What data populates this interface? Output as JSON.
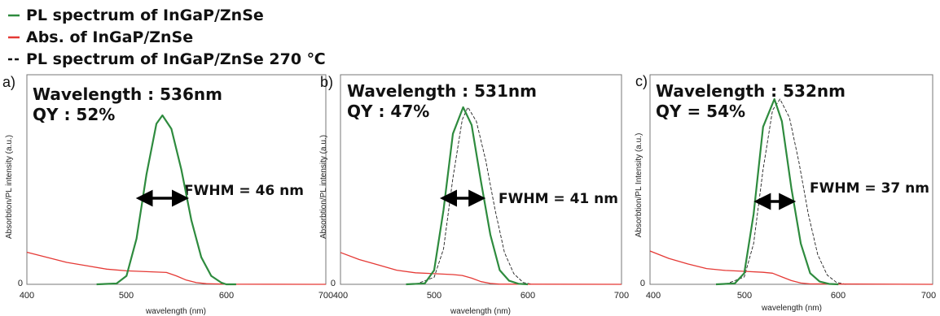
{
  "legend": [
    {
      "label": "PL spectrum of InGaP/ZnSe",
      "color": "#2e8b3e",
      "style": "solid"
    },
    {
      "label": "Abs. of InGaP/ZnSe",
      "color": "#e53935",
      "style": "solid"
    },
    {
      "label": "PL spectrum of InGaP/ZnSe 270 ℃",
      "color": "#111111",
      "style": "dashed"
    }
  ],
  "colors": {
    "pl": "#2e8b3e",
    "abs": "#e53935",
    "pl270": "#222222",
    "arrow": "#000000"
  },
  "chart_data": [
    {
      "type": "line",
      "panel_label": "a)",
      "annotation_wavelength": "Wavelength : 536nm",
      "annotation_qy": "QY : 52%",
      "fwhm_label": "FWHM = 46 nm",
      "xlabel": "wavelength (nm)",
      "ylabel": "Absorbtion/PL intensity (a.u.)",
      "xlim": [
        400,
        700
      ],
      "ylim": [
        0,
        1.1
      ],
      "x_ticks": [
        "400",
        "500",
        "600",
        "700"
      ],
      "y_ticks": [
        "0"
      ],
      "fwhm_arrow": [
        513,
        559
      ],
      "series": [
        {
          "key": "pl",
          "x": [
            470,
            490,
            500,
            510,
            520,
            530,
            536,
            545,
            555,
            565,
            575,
            585,
            595,
            600,
            610
          ],
          "y": [
            0,
            0.005,
            0.05,
            0.27,
            0.65,
            0.95,
            1.0,
            0.92,
            0.68,
            0.38,
            0.16,
            0.05,
            0.01,
            0.0,
            0
          ]
        },
        {
          "key": "abs",
          "x": [
            400,
            420,
            440,
            460,
            480,
            500,
            520,
            540,
            550,
            560,
            570,
            580,
            600,
            700
          ],
          "y": [
            0.19,
            0.16,
            0.13,
            0.11,
            0.09,
            0.08,
            0.075,
            0.07,
            0.05,
            0.025,
            0.01,
            0.004,
            0.001,
            0
          ]
        }
      ]
    },
    {
      "type": "line",
      "panel_label": "b)",
      "annotation_wavelength": "Wavelength : 531nm",
      "annotation_qy": "QY : 47%",
      "fwhm_label": "FWHM = 41 nm",
      "xlabel": "wavelength (nm)",
      "ylabel": "Absorbtion/PL intensity (a.u.)",
      "xlim": [
        400,
        700
      ],
      "ylim": [
        0,
        1.1
      ],
      "x_ticks": [
        "400",
        "500",
        "600",
        "700"
      ],
      "y_ticks": [
        "0"
      ],
      "fwhm_arrow": [
        510,
        551
      ],
      "series": [
        {
          "key": "pl",
          "x": [
            470,
            490,
            500,
            510,
            520,
            531,
            540,
            550,
            560,
            570,
            580,
            590,
            600
          ],
          "y": [
            0,
            0.005,
            0.08,
            0.42,
            0.85,
            1.0,
            0.9,
            0.58,
            0.28,
            0.08,
            0.02,
            0.003,
            0
          ]
        },
        {
          "key": "pl270",
          "x": [
            480,
            500,
            510,
            520,
            530,
            536,
            545,
            555,
            565,
            575,
            585,
            595,
            605
          ],
          "y": [
            0,
            0.04,
            0.2,
            0.6,
            0.93,
            1.0,
            0.92,
            0.7,
            0.42,
            0.18,
            0.06,
            0.01,
            0
          ]
        },
        {
          "key": "abs",
          "x": [
            400,
            420,
            440,
            460,
            480,
            500,
            520,
            530,
            540,
            550,
            560,
            570,
            700
          ],
          "y": [
            0.18,
            0.14,
            0.11,
            0.08,
            0.065,
            0.06,
            0.055,
            0.05,
            0.035,
            0.015,
            0.005,
            0.001,
            0
          ]
        }
      ]
    },
    {
      "type": "line",
      "panel_label": "c)",
      "annotation_wavelength": "Wavelength : 532nm",
      "annotation_qy": "QY = 54%",
      "fwhm_label": "FWHM = 37 nm",
      "xlabel": "wavelength (nm)",
      "ylabel": "Absorbtion/PL Intensity (a.u.)",
      "xlim": [
        400,
        700
      ],
      "ylim": [
        0,
        1.1
      ],
      "x_ticks": [
        "400",
        "500",
        "600",
        "700"
      ],
      "y_ticks": [
        "0"
      ],
      "fwhm_arrow": [
        514,
        551
      ],
      "series": [
        {
          "key": "pl",
          "x": [
            470,
            490,
            500,
            510,
            520,
            532,
            540,
            550,
            560,
            570,
            580,
            590,
            600
          ],
          "y": [
            0,
            0.005,
            0.06,
            0.38,
            0.85,
            1.0,
            0.88,
            0.52,
            0.22,
            0.06,
            0.015,
            0.002,
            0
          ]
        },
        {
          "key": "pl270",
          "x": [
            480,
            500,
            510,
            520,
            530,
            538,
            548,
            558,
            568,
            578,
            588,
            598,
            608
          ],
          "y": [
            0,
            0.04,
            0.22,
            0.62,
            0.94,
            1.0,
            0.9,
            0.66,
            0.38,
            0.16,
            0.05,
            0.01,
            0
          ]
        },
        {
          "key": "abs",
          "x": [
            400,
            420,
            440,
            460,
            480,
            500,
            520,
            530,
            540,
            550,
            560,
            570,
            700
          ],
          "y": [
            0.18,
            0.14,
            0.11,
            0.085,
            0.075,
            0.07,
            0.065,
            0.06,
            0.04,
            0.02,
            0.007,
            0.002,
            0
          ]
        }
      ]
    }
  ]
}
